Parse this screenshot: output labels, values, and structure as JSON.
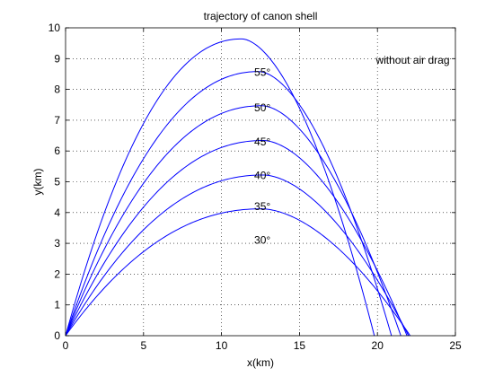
{
  "chart_data": {
    "type": "line",
    "title": "trajectory of canon shell",
    "xlabel": "x(km)",
    "ylabel": "y(km)",
    "xlim": [
      0,
      25
    ],
    "ylim": [
      0,
      10
    ],
    "x_ticks": [
      0,
      5,
      10,
      15,
      20,
      25
    ],
    "y_ticks": [
      0,
      1,
      2,
      3,
      4,
      5,
      6,
      7,
      8,
      9,
      10
    ],
    "grid": true,
    "line_color": "#0000ff",
    "annotation": {
      "text": "without air drag",
      "x": 19.9,
      "y": 8.95
    },
    "series": [
      {
        "label": "30°",
        "range": 22.1,
        "apex_x": 12.6,
        "apex_y": 4.12,
        "label_x": 12.1,
        "label_y": 3.1
      },
      {
        "label": "35°",
        "range": 22.0,
        "apex_x": 12.7,
        "apex_y": 5.22,
        "label_x": 12.1,
        "label_y": 4.2
      },
      {
        "label": "40°",
        "range": 21.9,
        "apex_x": 12.7,
        "apex_y": 6.34,
        "label_x": 12.1,
        "label_y": 5.2
      },
      {
        "label": "45°",
        "range": 21.5,
        "apex_x": 12.6,
        "apex_y": 7.47,
        "label_x": 12.1,
        "label_y": 6.3
      },
      {
        "label": "50°",
        "range": 20.9,
        "apex_x": 12.4,
        "apex_y": 8.58,
        "label_x": 12.1,
        "label_y": 7.4
      },
      {
        "label": "55°",
        "range": 19.8,
        "apex_x": 11.3,
        "apex_y": 9.64,
        "label_x": 12.1,
        "label_y": 8.55
      }
    ]
  }
}
